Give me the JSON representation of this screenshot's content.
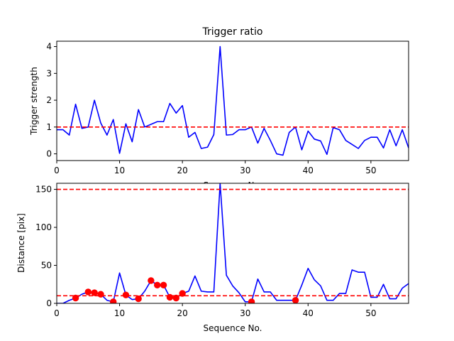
{
  "chart_data": [
    {
      "type": "line",
      "title": "Trigger ratio",
      "xlabel": "Sequence No.",
      "ylabel": "Trigger strength",
      "xlim": [
        0,
        56
      ],
      "ylim": [
        -0.25,
        4.2
      ],
      "xticks": [
        "0",
        "10",
        "20",
        "30",
        "40",
        "50"
      ],
      "yticks": [
        "0",
        "1",
        "2",
        "3",
        "4"
      ],
      "grid": false,
      "series": [
        {
          "color": "#0000ff",
          "style": "solid",
          "x": [
            0,
            1,
            2,
            3,
            4,
            5,
            6,
            7,
            8,
            9,
            10,
            11,
            12,
            13,
            14,
            15,
            16,
            17,
            18,
            19,
            20,
            21,
            22,
            23,
            24,
            25,
            26,
            27,
            28,
            29,
            30,
            31,
            32,
            33,
            34,
            35,
            36,
            37,
            38,
            39,
            40,
            41,
            42,
            43,
            44,
            45,
            46,
            47,
            48,
            49,
            50,
            51,
            52,
            53,
            54,
            55,
            56
          ],
          "values": [
            0.9,
            0.9,
            0.7,
            1.85,
            0.95,
            1.0,
            2.0,
            1.15,
            0.7,
            1.28,
            0.02,
            1.12,
            0.45,
            1.65,
            1.0,
            1.1,
            1.2,
            1.2,
            1.88,
            1.52,
            1.8,
            0.62,
            0.8,
            0.2,
            0.25,
            0.72,
            4.0,
            0.7,
            0.72,
            0.9,
            0.9,
            1.0,
            0.4,
            0.95,
            0.5,
            0.0,
            -0.05,
            0.8,
            1.0,
            0.15,
            0.85,
            0.55,
            0.48,
            -0.02,
            0.98,
            0.9,
            0.5,
            0.35,
            0.2,
            0.5,
            0.62,
            0.62,
            0.22,
            0.9,
            0.3,
            0.9,
            0.22
          ]
        },
        {
          "color": "#ff0000",
          "style": "dashed",
          "x": [
            0,
            56
          ],
          "values": [
            1.0,
            1.0
          ]
        }
      ]
    },
    {
      "type": "line",
      "title": "",
      "xlabel": "Sequence No.",
      "ylabel": "Distance [pix]",
      "xlim": [
        0,
        56
      ],
      "ylim": [
        0,
        158
      ],
      "xticks": [
        "0",
        "10",
        "20",
        "30",
        "40",
        "50"
      ],
      "yticks": [
        "0",
        "50",
        "100",
        "150"
      ],
      "grid": false,
      "series": [
        {
          "color": "#0000ff",
          "style": "solid",
          "x": [
            0,
            1,
            2,
            3,
            4,
            5,
            6,
            7,
            8,
            9,
            10,
            11,
            12,
            13,
            14,
            15,
            16,
            17,
            18,
            19,
            20,
            21,
            22,
            23,
            24,
            25,
            26,
            27,
            28,
            29,
            30,
            31,
            32,
            33,
            34,
            35,
            36,
            37,
            38,
            39,
            40,
            41,
            42,
            43,
            44,
            45,
            46,
            47,
            48,
            49,
            50,
            51,
            52,
            53,
            54,
            55,
            56
          ],
          "values": [
            0,
            0,
            4,
            7,
            12,
            15,
            14,
            12,
            4,
            2,
            40,
            11,
            5,
            6,
            16,
            30,
            24,
            24,
            8,
            7,
            13,
            16,
            36,
            16,
            15,
            15,
            158,
            37,
            23,
            14,
            2,
            2,
            32,
            15,
            15,
            4,
            4,
            4,
            4,
            24,
            46,
            31,
            23,
            4,
            4,
            13,
            13,
            44,
            41,
            41,
            8,
            8,
            25,
            6,
            6,
            20,
            26
          ]
        },
        {
          "color": "#ff0000",
          "style": "markers",
          "x": [
            3,
            5,
            6,
            7,
            9,
            11,
            13,
            15,
            16,
            17,
            18,
            19,
            20,
            31,
            38
          ],
          "values": [
            7,
            15,
            14,
            12,
            2,
            11,
            6,
            30,
            24,
            24,
            8,
            7,
            13,
            2,
            4
          ]
        },
        {
          "color": "#ff0000",
          "style": "dashed",
          "x": [
            0,
            56
          ],
          "values": [
            10,
            10
          ]
        },
        {
          "color": "#ff0000",
          "style": "dashed",
          "x": [
            0,
            56
          ],
          "values": [
            150,
            150
          ]
        }
      ]
    }
  ]
}
